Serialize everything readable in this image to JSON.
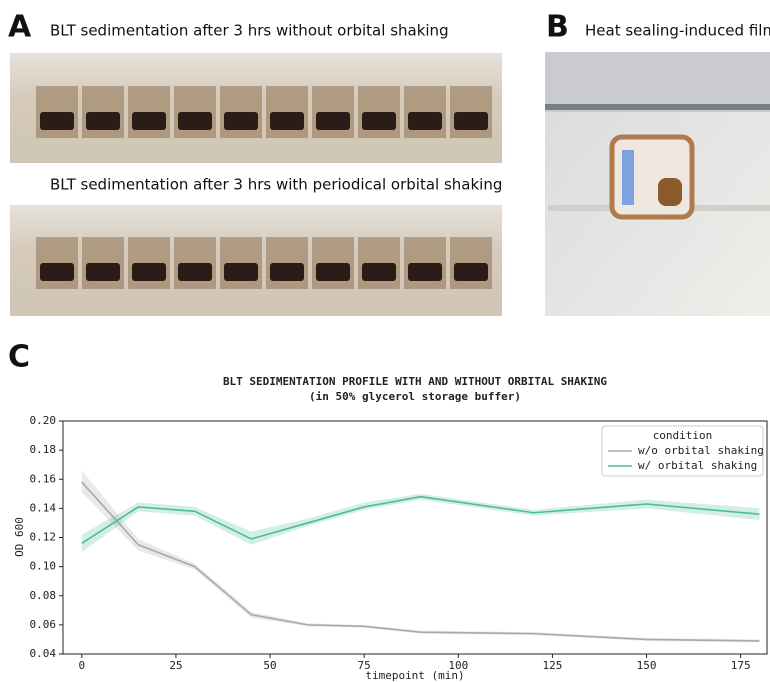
{
  "figure": {
    "panel_a": {
      "label": "A",
      "caption_top": "BLT sedimentation after 3 hrs without orbital shaking",
      "caption_bottom": "BLT sedimentation after 3 hrs with periodical orbital shaking"
    },
    "panel_b": {
      "label": "B",
      "caption": "Heat sealing-induced film"
    },
    "panel_c": {
      "label": "C"
    }
  },
  "chart_data": {
    "type": "line",
    "title": "BLT SEDIMENTATION PROFILE WITH AND WITHOUT ORBITAL SHAKING",
    "subtitle": "(in 50% glycerol storage buffer)",
    "x_label": "timepoint (min)",
    "y_label": "OD 600",
    "x": [
      0,
      15,
      30,
      45,
      60,
      75,
      90,
      120,
      150,
      180
    ],
    "series": [
      {
        "name": "w/o orbital shaking",
        "color": "#a9a9a9",
        "values": [
          0.158,
          0.115,
          0.1,
          0.067,
          0.06,
          0.059,
          0.055,
          0.054,
          0.05,
          0.049
        ],
        "lower": [
          0.151,
          0.111,
          0.098,
          0.065,
          0.059,
          0.058,
          0.054,
          0.053,
          0.049,
          0.048
        ],
        "upper": [
          0.166,
          0.119,
          0.102,
          0.069,
          0.061,
          0.06,
          0.056,
          0.055,
          0.051,
          0.05
        ]
      },
      {
        "name": "w/ orbital shaking",
        "color": "#4dbd96",
        "values": [
          0.116,
          0.141,
          0.138,
          0.119,
          0.13,
          0.141,
          0.148,
          0.137,
          0.143,
          0.136
        ],
        "lower": [
          0.11,
          0.138,
          0.135,
          0.115,
          0.128,
          0.139,
          0.146,
          0.135,
          0.14,
          0.132
        ],
        "upper": [
          0.122,
          0.144,
          0.141,
          0.124,
          0.133,
          0.144,
          0.15,
          0.139,
          0.146,
          0.14
        ]
      }
    ],
    "xlim": [
      -5,
      182
    ],
    "xticks": [
      0,
      25,
      50,
      75,
      100,
      125,
      150,
      175
    ],
    "ylim": [
      0.04,
      0.2
    ],
    "yticks": [
      0.04,
      0.06,
      0.08,
      {
        "value": 0.1,
        "label": "0.10"
      },
      0.12,
      0.14,
      0.16,
      0.18,
      {
        "value": 0.2,
        "label": "0.20"
      }
    ],
    "legend_title": "condition",
    "legend": "upper right"
  }
}
